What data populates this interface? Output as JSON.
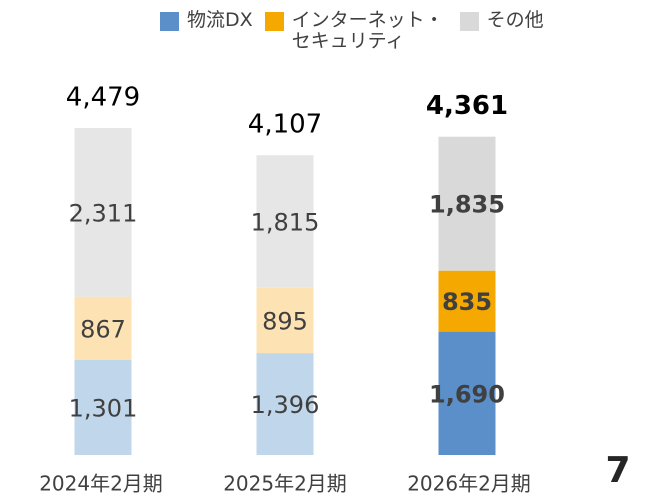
{
  "chart_data": {
    "type": "stacked_bar",
    "categories": [
      "2024年2月期",
      "2025年2月期",
      "2026年2月期"
    ],
    "series": [
      {
        "name": "物流DX",
        "color": "#5b8fc9",
        "bar_colors": [
          "#c0d6ea",
          "#c0d6ea",
          "#5b8fc9"
        ],
        "values": [
          1301,
          1396,
          1690
        ],
        "value_labels": [
          "1,301",
          "1,396",
          "1,690"
        ]
      },
      {
        "name": "インターネット・セキュリティ",
        "color": "#f5a800",
        "bar_colors": [
          "#fde3b4",
          "#fde3b4",
          "#f5a800"
        ],
        "values": [
          867,
          895,
          835
        ],
        "value_labels": [
          "867",
          "895",
          "835"
        ]
      },
      {
        "name": "その他",
        "color": "#d9d9d9",
        "bar_colors": [
          "#e6e6e6",
          "#e6e6e6",
          "#d9d9d9"
        ],
        "values": [
          2311,
          1815,
          1835
        ],
        "value_labels": [
          "2,311",
          "1,815",
          "1,835"
        ]
      }
    ],
    "totals": [
      4479,
      4107,
      4361
    ],
    "total_labels": [
      "4,479",
      "4,107",
      "4,361"
    ],
    "label_bold": [
      false,
      false,
      true
    ],
    "legend": "top-right"
  },
  "page_number": "7"
}
